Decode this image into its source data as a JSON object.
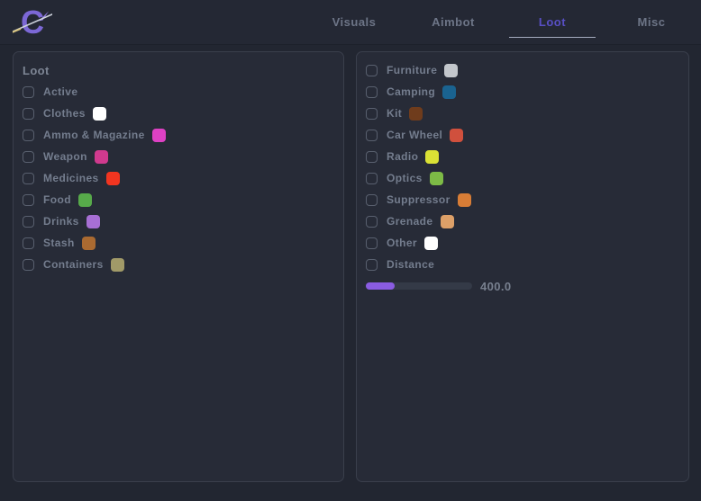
{
  "app": {
    "logo_letter": "C",
    "logo_color": "#7c68d6",
    "accent_color": "#584fc4"
  },
  "tabs": [
    {
      "label": "Visuals",
      "active": false
    },
    {
      "label": "Aimbot",
      "active": false
    },
    {
      "label": "Loot",
      "active": true
    },
    {
      "label": "Misc",
      "active": false
    }
  ],
  "left_panel": {
    "title": "Loot",
    "items": [
      {
        "label": "Active",
        "checked": false,
        "color": null
      },
      {
        "label": "Clothes",
        "checked": false,
        "color": "#ffffff"
      },
      {
        "label": "Ammo & Magazine",
        "checked": false,
        "color": "#de41c4"
      },
      {
        "label": "Weapon",
        "checked": false,
        "color": "#d03a8e"
      },
      {
        "label": "Medicines",
        "checked": false,
        "color": "#f23520"
      },
      {
        "label": "Food",
        "checked": false,
        "color": "#57aa4a"
      },
      {
        "label": "Drinks",
        "checked": false,
        "color": "#a76fd4"
      },
      {
        "label": "Stash",
        "checked": false,
        "color": "#aa6a31"
      },
      {
        "label": "Containers",
        "checked": false,
        "color": "#a19a68"
      }
    ]
  },
  "right_panel": {
    "items": [
      {
        "label": "Furniture",
        "checked": false,
        "color": "#c3c7cc"
      },
      {
        "label": "Camping",
        "checked": false,
        "color": "#1a6390"
      },
      {
        "label": "Kit",
        "checked": false,
        "color": "#6f3c1c"
      },
      {
        "label": "Car Wheel",
        "checked": false,
        "color": "#d0503d"
      },
      {
        "label": "Radio",
        "checked": false,
        "color": "#dae135"
      },
      {
        "label": "Optics",
        "checked": false,
        "color": "#7dbb46"
      },
      {
        "label": "Suppressor",
        "checked": false,
        "color": "#d87d36"
      },
      {
        "label": "Grenade",
        "checked": false,
        "color": "#dda068"
      },
      {
        "label": "Other",
        "checked": false,
        "color": "#ffffff"
      },
      {
        "label": "Distance",
        "checked": false,
        "color": null
      }
    ],
    "distance_slider": {
      "value": "400.0",
      "fill_percent": 27,
      "fill_color": "#8a5ce2",
      "track_color": "#343a47"
    }
  }
}
